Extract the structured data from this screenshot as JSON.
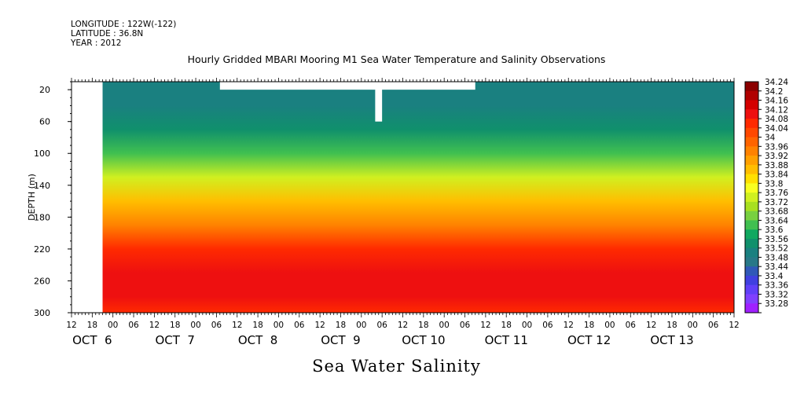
{
  "header": {
    "longitude": "LONGITUDE : 122W(-122)",
    "latitude": "LATITUDE : 36.8N",
    "year": "YEAR : 2012",
    "title": "Hourly Gridded MBARI Mooring M1 Sea Water Temperature and Salinity Observations"
  },
  "footer": {
    "variable_title": "Sea Water Salinity"
  },
  "chart_data": {
    "type": "heatmap",
    "title": "Hourly Gridded MBARI Mooring M1 Sea Water Temperature and Salinity Observations",
    "xlabel": "",
    "ylabel": "DEPTH (m)",
    "variable": "Sea Water Salinity",
    "ylim": [
      300,
      10
    ],
    "y_ticks": [
      20,
      60,
      100,
      140,
      180,
      220,
      260,
      300
    ],
    "x_hour_ticks": [
      "12",
      "18",
      "00",
      "06",
      "12",
      "18",
      "00",
      "06",
      "12",
      "18",
      "00",
      "06",
      "12",
      "18",
      "00",
      "06",
      "12",
      "18",
      "00",
      "06",
      "12",
      "18",
      "00",
      "06",
      "12",
      "18",
      "00",
      "06",
      "12",
      "18",
      "00",
      "06",
      "12"
    ],
    "x_day_labels": [
      "OCT  6",
      "OCT  7",
      "OCT  8",
      "OCT  9",
      "OCT 10",
      "OCT 11",
      "OCT 12",
      "OCT 13"
    ],
    "day_label_hours": [
      18,
      42,
      66,
      90,
      114,
      138,
      162,
      186
    ],
    "hour_range": [
      12,
      204
    ],
    "data_start_hour": 21,
    "colorbar": {
      "levels": [
        "34.24",
        "34.2",
        "34.16",
        "34.12",
        "34.08",
        "34.04",
        "34",
        "33.96",
        "33.92",
        "33.88",
        "33.84",
        "33.8",
        "33.76",
        "33.72",
        "33.68",
        "33.64",
        "33.6",
        "33.56",
        "33.52",
        "33.48",
        "33.44",
        "33.4",
        "33.36",
        "33.32",
        "33.28"
      ],
      "colors": [
        "#8b0000",
        "#b00000",
        "#d40000",
        "#ee1010",
        "#ff2a00",
        "#ff4800",
        "#ff6400",
        "#ff8200",
        "#ffa000",
        "#ffbe00",
        "#ffe000",
        "#f8ff20",
        "#d0f020",
        "#a8e020",
        "#78d040",
        "#40c050",
        "#10a860",
        "#10906c",
        "#1a8080",
        "#287888",
        "#3058b8",
        "#4040e0",
        "#6040f8",
        "#8040ff",
        "#a020ff"
      ]
    },
    "profile": [
      {
        "depth": 10,
        "salinity": 33.52
      },
      {
        "depth": 40,
        "salinity": 33.53
      },
      {
        "depth": 70,
        "salinity": 33.58
      },
      {
        "depth": 100,
        "salinity": 33.66
      },
      {
        "depth": 130,
        "salinity": 33.78
      },
      {
        "depth": 160,
        "salinity": 33.88
      },
      {
        "depth": 190,
        "salinity": 33.98
      },
      {
        "depth": 220,
        "salinity": 34.06
      },
      {
        "depth": 250,
        "salinity": 34.13
      },
      {
        "depth": 280,
        "salinity": 34.12
      },
      {
        "depth": 300,
        "salinity": 34.1
      }
    ],
    "missing_regions": [
      {
        "hour_start": 12,
        "hour_end": 21,
        "depth_top": 10,
        "depth_bottom": 300
      },
      {
        "hour_start": 55,
        "hour_end": 129,
        "depth_top": 10,
        "depth_bottom": 20
      },
      {
        "hour_start": 100,
        "hour_end": 102,
        "depth_top": 10,
        "depth_bottom": 60
      }
    ]
  }
}
